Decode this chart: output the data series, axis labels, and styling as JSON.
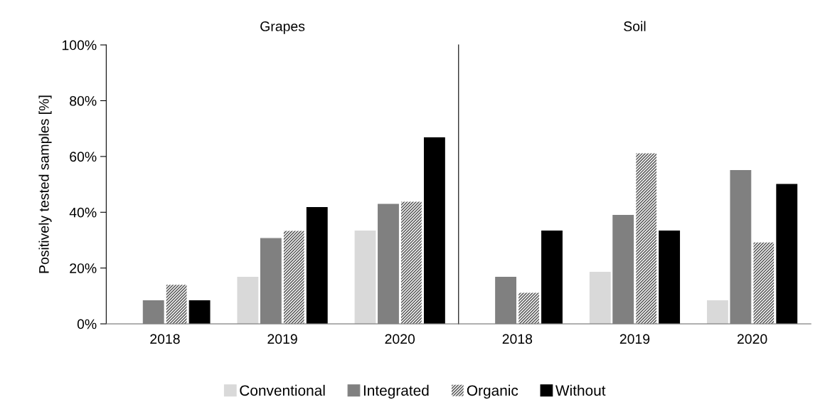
{
  "chart_data": [
    {
      "type": "bar",
      "title": "Grapes",
      "ylabel": "Positively tested samples [%]",
      "categories": [
        "2018",
        "2019",
        "2020"
      ],
      "ylim": [
        0,
        100
      ],
      "yticks": [
        {
          "value": 0,
          "label": "0%"
        },
        {
          "value": 20,
          "label": "20%"
        },
        {
          "value": 40,
          "label": "40%"
        },
        {
          "value": 60,
          "label": "60%"
        },
        {
          "value": 80,
          "label": "80%"
        },
        {
          "value": 100,
          "label": "100%"
        }
      ],
      "legend": "bottom",
      "grid": false,
      "series": [
        {
          "name": "Conventional",
          "color": "#d9d9d9",
          "values": [
            null,
            16.7,
            33.3
          ]
        },
        {
          "name": "Integrated",
          "color": "#808080",
          "values": [
            8.3,
            30.6,
            42.9
          ]
        },
        {
          "name": "Organic",
          "color": "#595959",
          "values": [
            14.0,
            33.3,
            43.8
          ]
        },
        {
          "name": "Without",
          "color": "#000000",
          "values": [
            8.3,
            41.7,
            66.7
          ]
        }
      ]
    },
    {
      "type": "bar",
      "title": "Soil",
      "categories": [
        "2018",
        "2019",
        "2020"
      ],
      "ylim": [
        0,
        100
      ],
      "tick_labels": "x",
      "grid": false,
      "series": [
        {
          "color": "#d9d9d9",
          "values": [
            null,
            18.5,
            8.3
          ]
        },
        {
          "color": "#808080",
          "values": [
            16.7,
            38.9,
            55.0
          ]
        },
        {
          "color": "#595959",
          "values": [
            11.1,
            61.1,
            29.2
          ]
        },
        {
          "color": "#000000",
          "values": [
            33.3,
            33.3,
            50.0
          ]
        }
      ]
    }
  ]
}
